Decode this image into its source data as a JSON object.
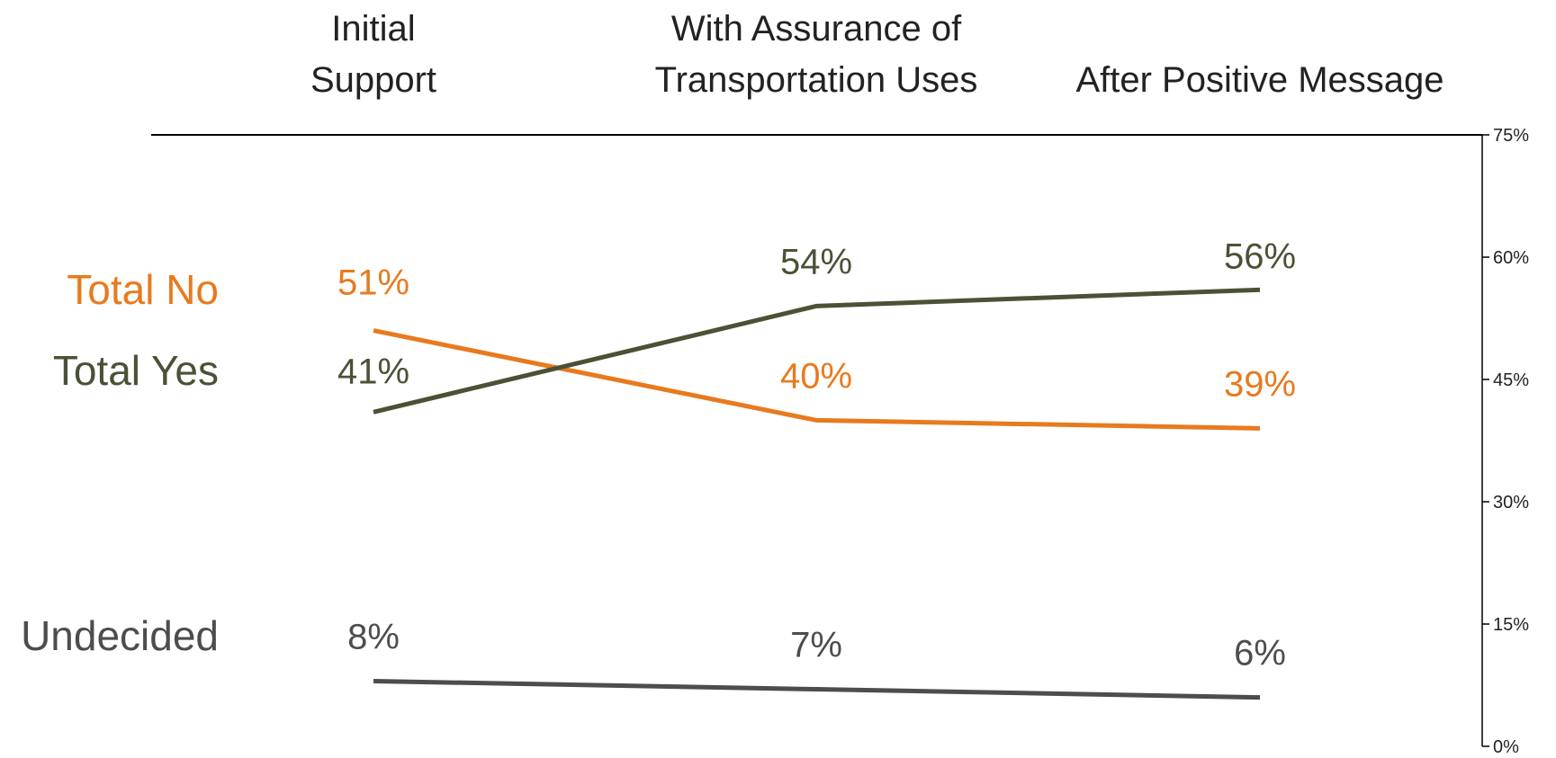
{
  "chart_data": {
    "type": "line",
    "categories": [
      [
        "Initial",
        "Support"
      ],
      [
        "With Assurance of",
        "Transportation Uses"
      ],
      [
        "After Positive Message"
      ]
    ],
    "series": [
      {
        "name": "Total No",
        "values": [
          51,
          40,
          39
        ],
        "labels": [
          "51%",
          "40%",
          "39%"
        ],
        "color": "#E87A1E"
      },
      {
        "name": "Total Yes",
        "values": [
          41,
          54,
          56
        ],
        "labels": [
          "41%",
          "54%",
          "56%"
        ],
        "color": "#4A5236"
      },
      {
        "name": "Undecided",
        "values": [
          8,
          7,
          6
        ],
        "labels": [
          "8%",
          "7%",
          "6%"
        ],
        "color": "#4D4D4D"
      }
    ],
    "y_axis": {
      "position": "right",
      "ylim": [
        0,
        75
      ],
      "ticks": [
        0,
        15,
        30,
        45,
        60,
        75
      ],
      "tick_labels": [
        "0%",
        "15%",
        "30%",
        "45%",
        "60%",
        "75%"
      ]
    },
    "grid": false,
    "legend": "left, inline series names"
  }
}
